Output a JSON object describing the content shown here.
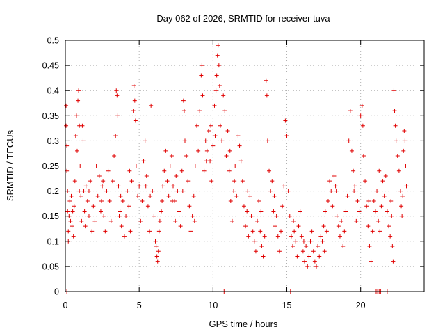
{
  "chart_data": {
    "type": "scatter",
    "title": "Day 062 of 2026, SRMTID for receiver tuva",
    "xlabel": "GPS time / hours",
    "ylabel": "SRMTID / TECUs",
    "xlim": [
      0,
      24.3
    ],
    "ylim": [
      0,
      0.5
    ],
    "xticks": [
      0,
      5,
      10,
      15,
      20
    ],
    "xtick_labels": [
      "0",
      "5",
      "10",
      "15",
      "20"
    ],
    "yticks": [
      0,
      0.05,
      0.1,
      0.15,
      0.2,
      0.25,
      0.3,
      0.35,
      0.4,
      0.45,
      0.5
    ],
    "ytick_labels": [
      "0",
      "0.05",
      "0.1",
      "0.15",
      "0.2",
      "0.25",
      "0.3",
      "0.35",
      "0.4",
      "0.45",
      "0.5"
    ],
    "grid": true,
    "marker": "plus",
    "color": "#e00000",
    "series": [
      {
        "name": "SRMTID",
        "points": [
          [
            0.05,
            0.37
          ],
          [
            0.05,
            0.33
          ],
          [
            0.1,
            0.29
          ],
          [
            0.1,
            0.24
          ],
          [
            0.15,
            0.2
          ],
          [
            0.15,
            0.16
          ],
          [
            0.2,
            0.12
          ],
          [
            0.2,
            0.1
          ],
          [
            0.25,
            0.15
          ],
          [
            0.3,
            0.18
          ],
          [
            0.35,
            0.14
          ],
          [
            0.4,
            0.19
          ],
          [
            0.45,
            0.13
          ],
          [
            0.5,
            0.16
          ],
          [
            0.55,
            0.11
          ],
          [
            0.6,
            0.17
          ],
          [
            0.65,
            0.22
          ],
          [
            0.7,
            0.31
          ],
          [
            0.75,
            0.35
          ],
          [
            0.8,
            0.28
          ],
          [
            0.85,
            0.38
          ],
          [
            0.9,
            0.4
          ],
          [
            0.95,
            0.33
          ],
          [
            1.0,
            0.25
          ],
          [
            1.05,
            0.19
          ],
          [
            1.1,
            0.14
          ],
          [
            1.15,
            0.33
          ],
          [
            1.2,
            0.3
          ],
          [
            1.25,
            0.2
          ],
          [
            1.3,
            0.16
          ],
          [
            1.35,
            0.13
          ],
          [
            1.4,
            0.21
          ],
          [
            1.5,
            0.18
          ],
          [
            1.6,
            0.15
          ],
          [
            1.7,
            0.22
          ],
          [
            1.8,
            0.12
          ],
          [
            1.9,
            0.17
          ],
          [
            2.0,
            0.14
          ],
          [
            2.1,
            0.25
          ],
          [
            2.2,
            0.19
          ],
          [
            2.3,
            0.23
          ],
          [
            2.4,
            0.16
          ],
          [
            2.5,
            0.21
          ],
          [
            2.6,
            0.15
          ],
          [
            2.7,
            0.12
          ],
          [
            2.8,
            0.2
          ],
          [
            2.9,
            0.24
          ],
          [
            3.0,
            0.18
          ],
          [
            3.1,
            0.14
          ],
          [
            3.2,
            0.22
          ],
          [
            3.3,
            0.27
          ],
          [
            3.4,
            0.31
          ],
          [
            3.45,
            0.4
          ],
          [
            3.5,
            0.39
          ],
          [
            3.55,
            0.35
          ],
          [
            3.6,
            0.21
          ],
          [
            3.7,
            0.16
          ],
          [
            3.8,
            0.13
          ],
          [
            3.9,
            0.18
          ],
          [
            4.0,
            0.11
          ],
          [
            4.1,
            0.15
          ],
          [
            4.2,
            0.2
          ],
          [
            4.3,
            0.17
          ],
          [
            4.4,
            0.12
          ],
          [
            4.5,
            0.22
          ],
          [
            4.6,
            0.36
          ],
          [
            4.65,
            0.41
          ],
          [
            4.7,
            0.38
          ],
          [
            4.75,
            0.34
          ],
          [
            4.8,
            0.25
          ],
          [
            4.9,
            0.19
          ],
          [
            5.0,
            0.21
          ],
          [
            5.1,
            0.14
          ],
          [
            5.2,
            0.18
          ],
          [
            5.3,
            0.26
          ],
          [
            5.4,
            0.3
          ],
          [
            5.5,
            0.23
          ],
          [
            5.6,
            0.17
          ],
          [
            5.7,
            0.12
          ],
          [
            5.8,
            0.37
          ],
          [
            5.9,
            0.2
          ],
          [
            6.0,
            0.15
          ],
          [
            6.1,
            0.1
          ],
          [
            6.15,
            0.09
          ],
          [
            6.2,
            0.07
          ],
          [
            6.25,
            0.06
          ],
          [
            6.3,
            0.08
          ],
          [
            6.35,
            0.12
          ],
          [
            6.4,
            0.14
          ],
          [
            6.5,
            0.16
          ],
          [
            6.6,
            0.21
          ],
          [
            6.7,
            0.24
          ],
          [
            6.8,
            0.28
          ],
          [
            6.9,
            0.22
          ],
          [
            7.0,
            0.19
          ],
          [
            7.1,
            0.25
          ],
          [
            7.2,
            0.27
          ],
          [
            7.3,
            0.21
          ],
          [
            7.4,
            0.18
          ],
          [
            7.5,
            0.23
          ],
          [
            7.6,
            0.2
          ],
          [
            7.7,
            0.16
          ],
          [
            7.8,
            0.13
          ],
          [
            7.9,
            0.24
          ],
          [
            8.0,
            0.38
          ],
          [
            8.05,
            0.36
          ],
          [
            8.1,
            0.3
          ],
          [
            8.2,
            0.27
          ],
          [
            8.3,
            0.22
          ],
          [
            8.4,
            0.17
          ],
          [
            8.5,
            0.12
          ],
          [
            8.6,
            0.15
          ],
          [
            8.7,
            0.19
          ],
          [
            8.8,
            0.25
          ],
          [
            8.9,
            0.33
          ],
          [
            9.0,
            0.28
          ],
          [
            9.1,
            0.36
          ],
          [
            9.2,
            0.43
          ],
          [
            9.25,
            0.45
          ],
          [
            9.3,
            0.39
          ],
          [
            9.4,
            0.24
          ],
          [
            9.5,
            0.3
          ],
          [
            9.6,
            0.28
          ],
          [
            9.7,
            0.32
          ],
          [
            9.8,
            0.26
          ],
          [
            9.9,
            0.22
          ],
          [
            10.0,
            0.29
          ],
          [
            10.1,
            0.37
          ],
          [
            10.2,
            0.4
          ],
          [
            10.25,
            0.43
          ],
          [
            10.3,
            0.47
          ],
          [
            10.35,
            0.49
          ],
          [
            10.4,
            0.45
          ],
          [
            10.45,
            0.41
          ],
          [
            10.5,
            0.33
          ],
          [
            10.6,
            0.3
          ],
          [
            10.7,
            0.39
          ],
          [
            10.8,
            0.36
          ],
          [
            10.9,
            0.27
          ],
          [
            11.0,
            0.32
          ],
          [
            11.1,
            0.24
          ],
          [
            11.2,
            0.18
          ],
          [
            11.3,
            0.14
          ],
          [
            11.4,
            0.2
          ],
          [
            11.5,
            0.25
          ],
          [
            11.6,
            0.19
          ],
          [
            11.7,
            0.31
          ],
          [
            11.8,
            0.29
          ],
          [
            11.9,
            0.26
          ],
          [
            12.0,
            0.22
          ],
          [
            12.1,
            0.17
          ],
          [
            12.2,
            0.13
          ],
          [
            12.3,
            0.16
          ],
          [
            12.4,
            0.11
          ],
          [
            12.5,
            0.19
          ],
          [
            12.6,
            0.15
          ],
          [
            12.7,
            0.12
          ],
          [
            12.8,
            0.1
          ],
          [
            12.9,
            0.08
          ],
          [
            13.0,
            0.14
          ],
          [
            13.1,
            0.18
          ],
          [
            13.2,
            0.12
          ],
          [
            13.3,
            0.09
          ],
          [
            13.4,
            0.07
          ],
          [
            13.5,
            0.11
          ],
          [
            13.6,
            0.42
          ],
          [
            13.65,
            0.39
          ],
          [
            13.7,
            0.3
          ],
          [
            13.8,
            0.24
          ],
          [
            13.9,
            0.2
          ],
          [
            14.0,
            0.22
          ],
          [
            14.1,
            0.16
          ],
          [
            14.2,
            0.13
          ],
          [
            14.3,
            0.15
          ],
          [
            14.4,
            0.11
          ],
          [
            14.5,
            0.08
          ],
          [
            14.6,
            0.12
          ],
          [
            14.7,
            0.17
          ],
          [
            14.8,
            0.21
          ],
          [
            14.9,
            0.34
          ],
          [
            15.0,
            0.31
          ],
          [
            15.1,
            0.2
          ],
          [
            15.2,
            0.15
          ],
          [
            15.3,
            0.11
          ],
          [
            15.4,
            0.09
          ],
          [
            15.5,
            0.12
          ],
          [
            15.6,
            0.1
          ],
          [
            15.7,
            0.07
          ],
          [
            15.8,
            0.13
          ],
          [
            15.9,
            0.16
          ],
          [
            16.0,
            0.11
          ],
          [
            16.1,
            0.08
          ],
          [
            16.2,
            0.06
          ],
          [
            16.3,
            0.09
          ],
          [
            16.4,
            0.05
          ],
          [
            16.5,
            0.07
          ],
          [
            16.6,
            0.1
          ],
          [
            16.7,
            0.12
          ],
          [
            16.8,
            0.08
          ],
          [
            16.9,
            0.06
          ],
          [
            17.0,
            0.05
          ],
          [
            17.1,
            0.09
          ],
          [
            17.2,
            0.07
          ],
          [
            17.3,
            0.11
          ],
          [
            17.4,
            0.1
          ],
          [
            17.5,
            0.13
          ],
          [
            17.6,
            0.16
          ],
          [
            17.7,
            0.12
          ],
          [
            17.8,
            0.18
          ],
          [
            17.9,
            0.22
          ],
          [
            18.0,
            0.2
          ],
          [
            18.1,
            0.17
          ],
          [
            18.2,
            0.23
          ],
          [
            18.3,
            0.21
          ],
          [
            18.4,
            0.15
          ],
          [
            18.5,
            0.13
          ],
          [
            18.6,
            0.11
          ],
          [
            18.7,
            0.14
          ],
          [
            18.8,
            0.09
          ],
          [
            18.9,
            0.12
          ],
          [
            19.0,
            0.16
          ],
          [
            19.1,
            0.19
          ],
          [
            19.2,
            0.3
          ],
          [
            19.3,
            0.36
          ],
          [
            19.4,
            0.28
          ],
          [
            19.5,
            0.24
          ],
          [
            19.6,
            0.21
          ],
          [
            19.7,
            0.14
          ],
          [
            19.8,
            0.18
          ],
          [
            19.9,
            0.16
          ],
          [
            20.0,
            0.35
          ],
          [
            20.1,
            0.37
          ],
          [
            20.15,
            0.33
          ],
          [
            20.2,
            0.27
          ],
          [
            20.3,
            0.22
          ],
          [
            20.4,
            0.17
          ],
          [
            20.5,
            0.13
          ],
          [
            20.6,
            0.09
          ],
          [
            20.7,
            0.06
          ],
          [
            20.8,
            0.12
          ],
          [
            20.9,
            0.18
          ],
          [
            21.0,
            0.16
          ],
          [
            21.1,
            0.2
          ],
          [
            21.2,
            0.14
          ],
          [
            21.3,
            0.12
          ],
          [
            21.4,
            0.17
          ],
          [
            21.5,
            0.22
          ],
          [
            21.6,
            0.19
          ],
          [
            21.7,
            0.23
          ],
          [
            21.8,
            0.16
          ],
          [
            21.9,
            0.13
          ],
          [
            22.0,
            0.11
          ],
          [
            22.1,
            0.15
          ],
          [
            22.15,
            0.09
          ],
          [
            22.2,
            0.06
          ],
          [
            22.25,
            0.4
          ],
          [
            22.3,
            0.36
          ],
          [
            22.35,
            0.33
          ],
          [
            22.4,
            0.3
          ],
          [
            22.5,
            0.27
          ],
          [
            22.6,
            0.24
          ],
          [
            22.7,
            0.2
          ],
          [
            22.75,
            0.17
          ],
          [
            22.8,
            0.15
          ],
          [
            22.85,
            0.19
          ],
          [
            22.9,
            0.28
          ],
          [
            22.95,
            0.32
          ],
          [
            23.0,
            0.3
          ],
          [
            23.05,
            0.25
          ],
          [
            23.1,
            0.21
          ],
          [
            1.6,
            0.2
          ],
          [
            2.45,
            0.18
          ],
          [
            3.75,
            0.19
          ],
          [
            4.35,
            0.24
          ],
          [
            5.45,
            0.21
          ],
          [
            6.55,
            0.18
          ],
          [
            7.25,
            0.18
          ],
          [
            7.95,
            0.2
          ],
          [
            8.75,
            0.14
          ],
          [
            9.55,
            0.26
          ],
          [
            10.15,
            0.31
          ],
          [
            11.15,
            0.28
          ],
          [
            12.35,
            0.2
          ],
          [
            13.25,
            0.16
          ],
          [
            14.15,
            0.19
          ],
          [
            15.45,
            0.14
          ],
          [
            16.15,
            0.1
          ],
          [
            17.55,
            0.08
          ],
          [
            18.35,
            0.2
          ],
          [
            19.55,
            0.2
          ],
          [
            20.55,
            0.18
          ],
          [
            21.25,
            0.24
          ],
          [
            22.05,
            0.18
          ],
          [
            0.95,
            0.2
          ],
          [
            2.55,
            0.22
          ],
          [
            3.65,
            0.15
          ],
          [
            5.75,
            0.19
          ],
          [
            7.45,
            0.14
          ],
          [
            9.85,
            0.33
          ],
          [
            11.45,
            0.22
          ]
        ]
      }
    ],
    "zero_markers_x": [
      0.1,
      10.75,
      15.25,
      21.05,
      21.15,
      21.25,
      21.35,
      21.45,
      21.8
    ]
  }
}
